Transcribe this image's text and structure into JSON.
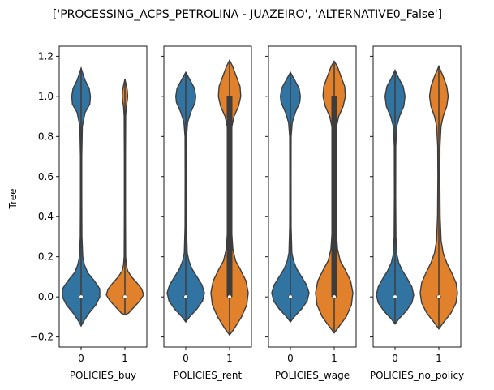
{
  "chart_data": {
    "type": "violin",
    "title": "['PROCESSING_ACPS_PETROLINA - JUAZEIRO', 'ALTERNATIVE0_False']",
    "ylabel": "Tree",
    "ylim": [
      -0.25,
      1.25
    ],
    "yticks": [
      "−0.2",
      "0.0",
      "0.2",
      "0.4",
      "0.6",
      "0.8",
      "1.0",
      "1.2"
    ],
    "ytick_values": [
      -0.2,
      0.0,
      0.2,
      0.4,
      0.6,
      0.8,
      1.0,
      1.2
    ],
    "grid": false,
    "colors": {
      "0": "#3274a1",
      "1": "#e1812c",
      "inner": "#3d3d3d"
    },
    "panels": [
      {
        "xlabel": "POLICIES_buy",
        "categories": [
          "0",
          "1"
        ],
        "violins": [
          {
            "category": "0",
            "min": -0.145,
            "max": 1.14,
            "median": 0.0,
            "q1": 0.0,
            "q3": 0.0,
            "density": [
              [
                -0.145,
                0
              ],
              [
                -0.12,
                2
              ],
              [
                -0.08,
                6
              ],
              [
                -0.04,
                11
              ],
              [
                0.0,
                14
              ],
              [
                0.04,
                14
              ],
              [
                0.08,
                10
              ],
              [
                0.12,
                5
              ],
              [
                0.16,
                2.5
              ],
              [
                0.2,
                1.2
              ],
              [
                0.3,
                0.6
              ],
              [
                0.5,
                0.5
              ],
              [
                0.7,
                0.5
              ],
              [
                0.85,
                0.9
              ],
              [
                0.92,
                3
              ],
              [
                0.96,
                6.5
              ],
              [
                1.0,
                7
              ],
              [
                1.04,
                6
              ],
              [
                1.08,
                3
              ],
              [
                1.12,
                1
              ],
              [
                1.14,
                0
              ]
            ]
          },
          {
            "category": "1",
            "min": -0.09,
            "max": 1.085,
            "median": 0.0,
            "q1": 0.0,
            "q3": 0.0,
            "density": [
              [
                -0.09,
                0
              ],
              [
                -0.08,
                4
              ],
              [
                -0.05,
                10
              ],
              [
                -0.02,
                16
              ],
              [
                0.01,
                20
              ],
              [
                0.04,
                18
              ],
              [
                0.07,
                13
              ],
              [
                0.1,
                7
              ],
              [
                0.13,
                3
              ],
              [
                0.16,
                1.5
              ],
              [
                0.2,
                0.8
              ],
              [
                0.4,
                0.6
              ],
              [
                0.7,
                0.6
              ],
              [
                0.9,
                0.8
              ],
              [
                0.95,
                1.5
              ],
              [
                0.98,
                2.5
              ],
              [
                1.0,
                3
              ],
              [
                1.03,
                2.5
              ],
              [
                1.06,
                1.2
              ],
              [
                1.085,
                0
              ]
            ]
          }
        ]
      },
      {
        "xlabel": "POLICIES_rent",
        "categories": [
          "0",
          "1"
        ],
        "violins": [
          {
            "category": "0",
            "min": -0.125,
            "max": 1.12,
            "median": 0.0,
            "q1": 0.0,
            "q3": 0.0,
            "density": [
              [
                -0.125,
                0
              ],
              [
                -0.1,
                3
              ],
              [
                -0.06,
                9
              ],
              [
                -0.02,
                13.5
              ],
              [
                0.02,
                15
              ],
              [
                0.06,
                13
              ],
              [
                0.1,
                9
              ],
              [
                0.14,
                5
              ],
              [
                0.18,
                2.5
              ],
              [
                0.22,
                1.2
              ],
              [
                0.35,
                0.6
              ],
              [
                0.6,
                0.5
              ],
              [
                0.8,
                0.6
              ],
              [
                0.87,
                1.5
              ],
              [
                0.92,
                4
              ],
              [
                0.97,
                7.5
              ],
              [
                1.0,
                8
              ],
              [
                1.04,
                7
              ],
              [
                1.08,
                3.5
              ],
              [
                1.12,
                0
              ]
            ]
          },
          {
            "category": "1",
            "min": -0.19,
            "max": 1.18,
            "median": 0.0,
            "q1": 0.0,
            "q3": 1.0,
            "density": [
              [
                -0.19,
                0
              ],
              [
                -0.16,
                3
              ],
              [
                -0.1,
                8
              ],
              [
                -0.04,
                11.5
              ],
              [
                0.02,
                12.5
              ],
              [
                0.08,
                11
              ],
              [
                0.14,
                7
              ],
              [
                0.18,
                4
              ],
              [
                0.24,
                2.2
              ],
              [
                0.35,
                1.2
              ],
              [
                0.5,
                1
              ],
              [
                0.7,
                1
              ],
              [
                0.85,
                1.6
              ],
              [
                0.9,
                3
              ],
              [
                0.95,
                6
              ],
              [
                1.0,
                7.5
              ],
              [
                1.05,
                7
              ],
              [
                1.1,
                4.5
              ],
              [
                1.15,
                2
              ],
              [
                1.18,
                0
              ]
            ]
          }
        ]
      },
      {
        "xlabel": "POLICIES_wage",
        "categories": [
          "0",
          "1"
        ],
        "violins": [
          {
            "category": "0",
            "min": -0.125,
            "max": 1.12,
            "median": 0.0,
            "q1": 0.0,
            "q3": 0.0,
            "density": [
              [
                -0.125,
                0
              ],
              [
                -0.1,
                3
              ],
              [
                -0.06,
                9
              ],
              [
                -0.02,
                13.5
              ],
              [
                0.02,
                15
              ],
              [
                0.06,
                13
              ],
              [
                0.1,
                9
              ],
              [
                0.14,
                5
              ],
              [
                0.18,
                2.5
              ],
              [
                0.22,
                1.2
              ],
              [
                0.35,
                0.6
              ],
              [
                0.6,
                0.5
              ],
              [
                0.8,
                0.6
              ],
              [
                0.87,
                1.5
              ],
              [
                0.92,
                4
              ],
              [
                0.97,
                7.5
              ],
              [
                1.0,
                8
              ],
              [
                1.04,
                7
              ],
              [
                1.08,
                3.5
              ],
              [
                1.12,
                0
              ]
            ]
          },
          {
            "category": "1",
            "min": -0.18,
            "max": 1.175,
            "median": 0.0,
            "q1": 0.0,
            "q3": 1.0,
            "density": [
              [
                -0.18,
                0
              ],
              [
                -0.15,
                3
              ],
              [
                -0.1,
                8
              ],
              [
                -0.04,
                11.5
              ],
              [
                0.02,
                12.5
              ],
              [
                0.08,
                11
              ],
              [
                0.14,
                7
              ],
              [
                0.18,
                4
              ],
              [
                0.24,
                2.2
              ],
              [
                0.35,
                1.2
              ],
              [
                0.5,
                1
              ],
              [
                0.7,
                1
              ],
              [
                0.85,
                1.6
              ],
              [
                0.9,
                3
              ],
              [
                0.95,
                6
              ],
              [
                1.0,
                7.5
              ],
              [
                1.05,
                7
              ],
              [
                1.1,
                4.5
              ],
              [
                1.15,
                2
              ],
              [
                1.175,
                0
              ]
            ]
          }
        ]
      },
      {
        "xlabel": "POLICIES_no_policy",
        "categories": [
          "0",
          "1"
        ],
        "violins": [
          {
            "category": "0",
            "min": -0.135,
            "max": 1.13,
            "median": 0.0,
            "q1": 0.0,
            "q3": 0.0,
            "density": [
              [
                -0.135,
                0
              ],
              [
                -0.11,
                3
              ],
              [
                -0.07,
                9
              ],
              [
                -0.03,
                13.5
              ],
              [
                0.01,
                15
              ],
              [
                0.05,
                13.5
              ],
              [
                0.09,
                10
              ],
              [
                0.13,
                6
              ],
              [
                0.17,
                3
              ],
              [
                0.21,
                1.5
              ],
              [
                0.3,
                0.7
              ],
              [
                0.5,
                0.5
              ],
              [
                0.75,
                0.6
              ],
              [
                0.85,
                1.4
              ],
              [
                0.9,
                3.5
              ],
              [
                0.95,
                7
              ],
              [
                1.0,
                8
              ],
              [
                1.05,
                6.5
              ],
              [
                1.09,
                3
              ],
              [
                1.13,
                0
              ]
            ]
          },
          {
            "category": "1",
            "min": -0.16,
            "max": 1.15,
            "median": 0.0,
            "q1": 0.0,
            "q3": 0.0,
            "density": [
              [
                -0.16,
                0
              ],
              [
                -0.13,
                3
              ],
              [
                -0.08,
                8.5
              ],
              [
                -0.03,
                12
              ],
              [
                0.02,
                13
              ],
              [
                0.07,
                12
              ],
              [
                0.12,
                9
              ],
              [
                0.17,
                5.5
              ],
              [
                0.22,
                3
              ],
              [
                0.28,
                1.6
              ],
              [
                0.4,
                0.9
              ],
              [
                0.6,
                0.7
              ],
              [
                0.75,
                0.8
              ],
              [
                0.85,
                1.5
              ],
              [
                0.9,
                3
              ],
              [
                0.95,
                5.5
              ],
              [
                1.0,
                6.5
              ],
              [
                1.05,
                5.5
              ],
              [
                1.1,
                3
              ],
              [
                1.15,
                0
              ]
            ]
          }
        ]
      }
    ]
  }
}
